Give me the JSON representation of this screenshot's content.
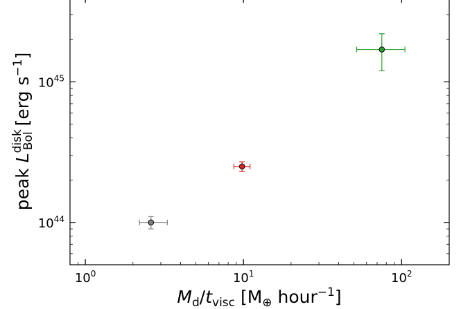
{
  "chart_data": {
    "type": "scatter",
    "title": "",
    "xlabel": {
      "main": "M",
      "sub1": "d",
      "slash": "/",
      "t": "t",
      "sub2": "visc",
      "unit": "[M",
      "unit_sub": "⊕",
      "unit_rest": " hour",
      "unit_exp": "−1",
      "unit_close": "]"
    },
    "ylabel": {
      "pre": "peak ",
      "L": "L",
      "sup": "disk",
      "sub": "Bol",
      "unit": " [erg s",
      "unit_exp": "−1",
      "unit_close": "]"
    },
    "xscale": "log",
    "yscale": "log",
    "xlim": [
      0.8,
      200
    ],
    "ylim": [
      5e+43,
      4e+45
    ],
    "x_ticks": [
      {
        "value": 1,
        "base": "10",
        "exp": "0"
      },
      {
        "value": 10,
        "base": "10",
        "exp": "1"
      },
      {
        "value": 100,
        "base": "10",
        "exp": "2"
      }
    ],
    "y_ticks": [
      {
        "value": 1e+44,
        "base": "10",
        "exp": "44"
      },
      {
        "value": 1e+45,
        "base": "10",
        "exp": "45"
      }
    ],
    "points": [
      {
        "x": 2.6,
        "y": 1e+44,
        "xerr": [
          2.2,
          3.3
        ],
        "yerr": [
          9e+43,
          1.1e+44
        ],
        "color": "#7f7f7f",
        "fill": "#808080"
      },
      {
        "x": 9.8,
        "y": 2.5e+44,
        "xerr": [
          8.7,
          11.0
        ],
        "yerr": [
          2.3e+44,
          2.7e+44
        ],
        "color": "#d62728",
        "fill": "#d62728"
      },
      {
        "x": 75,
        "y": 1.7e+45,
        "xerr": [
          52,
          105
        ],
        "yerr": [
          1.2e+45,
          2.2e+45
        ],
        "color": "#2ca02c",
        "fill": "#2ca02c"
      }
    ],
    "grid": false,
    "legend": "none"
  }
}
